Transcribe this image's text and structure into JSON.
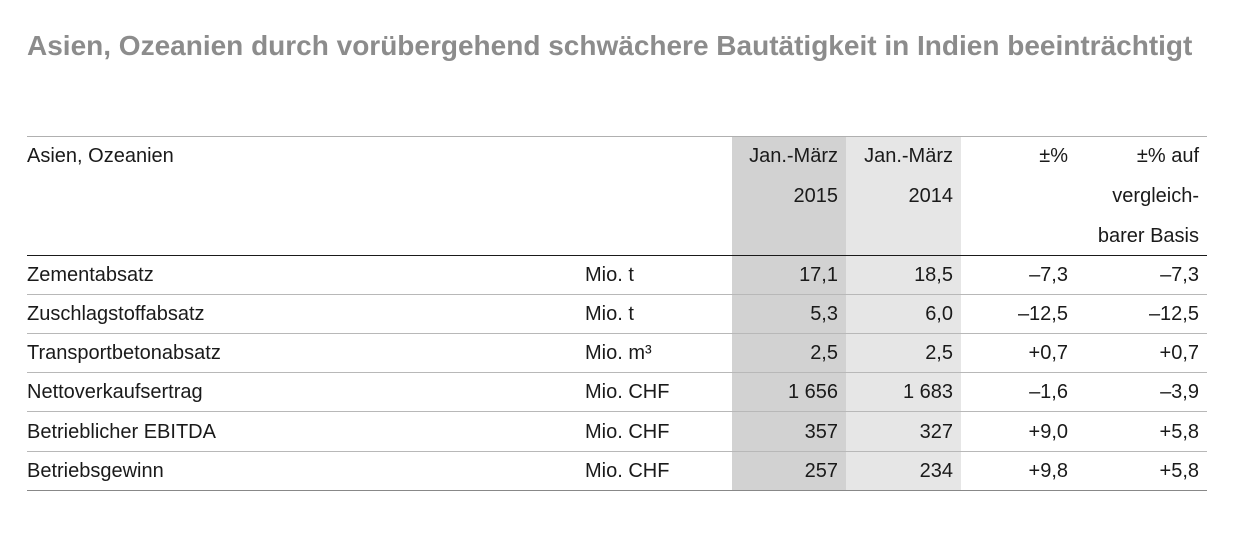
{
  "title": "Asien, Ozeanien durch vorübergehend schwächere Bautätigkeit in Indien beeinträchtigt",
  "table": {
    "header": {
      "label": "Asien, Ozeanien",
      "col_2015": [
        "Jan.-März",
        "2015"
      ],
      "col_2014": [
        "Jan.-März",
        "2014"
      ],
      "col_pct": [
        "±%"
      ],
      "col_pct_basis": [
        "±% auf",
        "vergleich-",
        "barer Basis"
      ]
    },
    "rows": [
      {
        "label": "Zementabsatz",
        "unit": "Mio. t",
        "v2015": "17,1",
        "v2014": "18,5",
        "pct": "–7,3",
        "pct_basis": "–7,3"
      },
      {
        "label": "Zuschlagstoffabsatz",
        "unit": "Mio. t",
        "v2015": "5,3",
        "v2014": "6,0",
        "pct": "–12,5",
        "pct_basis": "–12,5"
      },
      {
        "label": "Transportbetonabsatz",
        "unit": "Mio. m³",
        "v2015": "2,5",
        "v2014": "2,5",
        "pct": "+0,7",
        "pct_basis": "+0,7"
      },
      {
        "label": "Nettoverkaufsertrag",
        "unit": "Mio. CHF",
        "v2015": "1 656",
        "v2014": "1 683",
        "pct": "–1,6",
        "pct_basis": "–3,9"
      },
      {
        "label": "Betrieblicher EBITDA",
        "unit": "Mio. CHF",
        "v2015": "357",
        "v2014": "327",
        "pct": "+9,0",
        "pct_basis": "+5,8"
      },
      {
        "label": "Betriebsgewinn",
        "unit": "Mio. CHF",
        "v2015": "257",
        "v2014": "234",
        "pct": "+9,8",
        "pct_basis": "+5,8"
      }
    ]
  }
}
